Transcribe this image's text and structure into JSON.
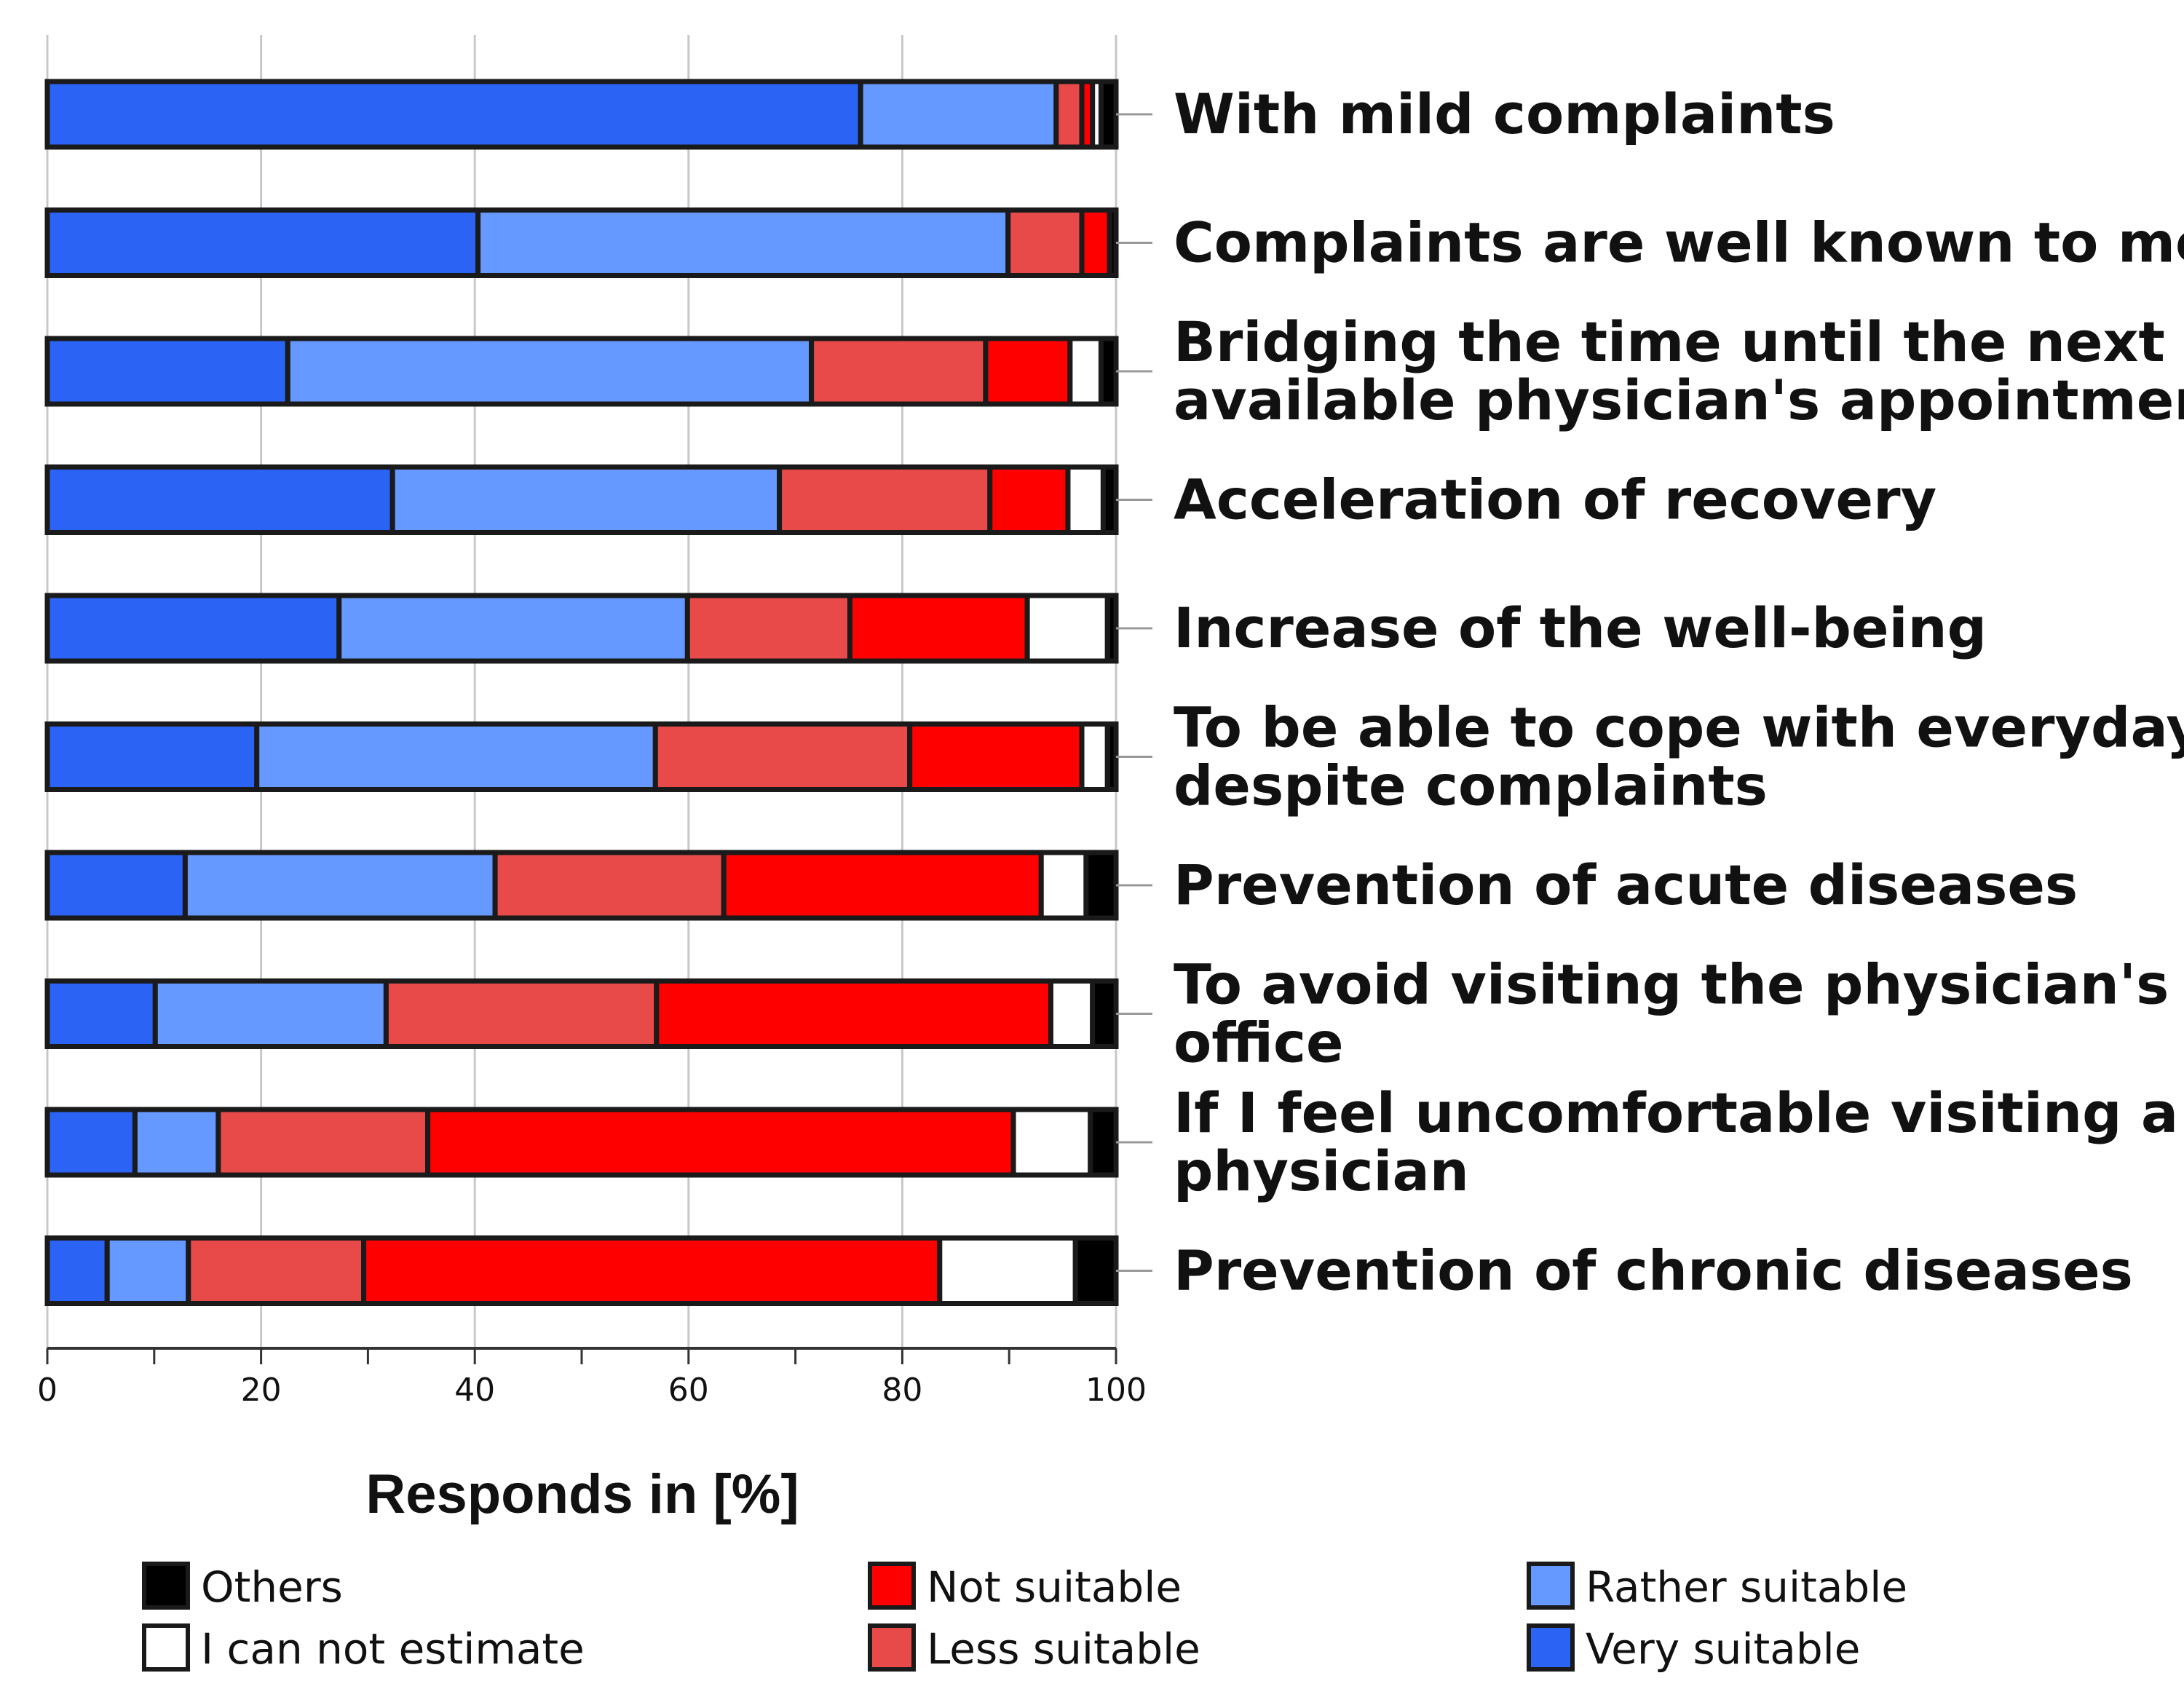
{
  "chart_data": {
    "type": "bar",
    "orientation": "horizontal",
    "stacked": true,
    "xlabel": "Responds in [%]",
    "xlim": [
      0,
      100
    ],
    "xticks": [
      "0",
      "20",
      "40",
      "60",
      "80",
      "100"
    ],
    "grid": true,
    "legend_position": "bottom",
    "categories": [
      {
        "lines": [
          "With mild complaints"
        ]
      },
      {
        "lines": [
          "Complaints are well known to me"
        ]
      },
      {
        "lines": [
          "Bridging the time until the next",
          "available physician's appointment"
        ]
      },
      {
        "lines": [
          "Acceleration of recovery"
        ]
      },
      {
        "lines": [
          "Increase of the well-being"
        ]
      },
      {
        "lines": [
          "To be able to cope with everyday life",
          "despite complaints"
        ]
      },
      {
        "lines": [
          "Prevention of acute diseases"
        ]
      },
      {
        "lines": [
          "To avoid visiting the physician's",
          "office"
        ]
      },
      {
        "lines": [
          "If I feel uncomfortable visiting a",
          "physician"
        ]
      },
      {
        "lines": [
          "Prevention of chronic diseases"
        ]
      }
    ],
    "series": [
      {
        "name": "Very suitable",
        "color": "#2B63F5",
        "values": [
          76.1,
          40.3,
          22.5,
          32.3,
          27.3,
          19.6,
          12.9,
          10.1,
          8.2,
          5.6
        ]
      },
      {
        "name": "Rather suitable",
        "color": "#6699FF",
        "values": [
          18.3,
          49.6,
          49.0,
          36.2,
          32.6,
          37.3,
          29.0,
          21.6,
          7.8,
          7.6
        ]
      },
      {
        "name": "Less suitable",
        "color": "#E84A4A",
        "values": [
          2.4,
          6.9,
          16.3,
          19.7,
          15.2,
          23.8,
          21.4,
          25.3,
          19.6,
          16.4
        ]
      },
      {
        "name": "Not suitable",
        "color": "#FF0000",
        "values": [
          1.0,
          2.6,
          7.9,
          7.3,
          16.6,
          16.1,
          29.7,
          36.9,
          54.8,
          53.9
        ]
      },
      {
        "name": "I can not estimate",
        "color": "#FFFFFF",
        "values": [
          0.8,
          0.0,
          2.9,
          3.3,
          7.5,
          2.4,
          4.2,
          3.9,
          7.2,
          12.7
        ]
      },
      {
        "name": "Others",
        "color": "#000000",
        "values": [
          1.4,
          0.6,
          1.4,
          1.2,
          0.8,
          0.8,
          2.8,
          2.2,
          2.4,
          3.8
        ]
      }
    ],
    "legend": [
      {
        "name": "Others",
        "color": "#000000"
      },
      {
        "name": "Not suitable",
        "color": "#FF0000"
      },
      {
        "name": "Rather suitable",
        "color": "#6699FF"
      },
      {
        "name": "I can not estimate",
        "color": "#FFFFFF"
      },
      {
        "name": "Less suitable",
        "color": "#E84A4A"
      },
      {
        "name": "Very suitable",
        "color": "#2B63F5"
      }
    ]
  }
}
